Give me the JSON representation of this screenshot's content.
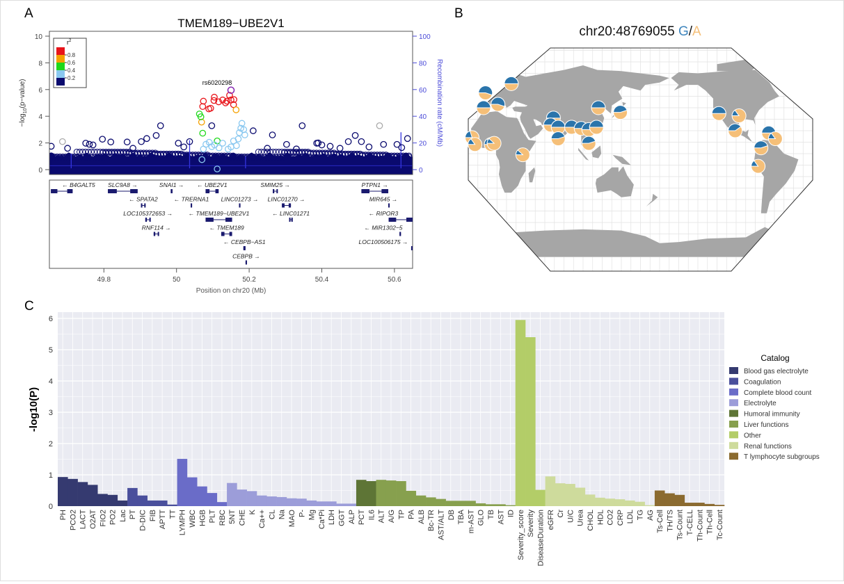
{
  "panel_labels": {
    "a": "A",
    "b": "B",
    "c": "C"
  },
  "chart_data": [
    {
      "type": "scatter",
      "panel": "A",
      "title": "TMEM189−UBE2V1",
      "ylabel_left_prefix": "−log",
      "ylabel_left_sub": "10",
      "ylabel_left_suffix": "(p−value)",
      "ylabel_right": "Recombination rate (cM/Mb)",
      "xlabel": "Position on chr20 (Mb)",
      "xlim": [
        49.65,
        50.65
      ],
      "ylim": [
        0,
        10
      ],
      "ylim_right": [
        0,
        100
      ],
      "xticks": [
        "49.8",
        "50",
        "50.2",
        "50.4",
        "50.6"
      ],
      "yticks": [
        "0",
        "2",
        "4",
        "6",
        "8",
        "10"
      ],
      "yticks_right": [
        "0",
        "20",
        "40",
        "60",
        "80",
        "100"
      ],
      "lead_snp": {
        "label": "rs6020298",
        "pos": 50.15,
        "logp": 5.95
      },
      "legend": {
        "title": "r",
        "title_sup": "2",
        "breaks": [
          "0.8",
          "0.6",
          "0.4",
          "0.2"
        ],
        "colors": [
          "#e8141a",
          "#f5a100",
          "#1ed81a",
          "#8ac8f0",
          "#0a0a6e"
        ]
      },
      "colors": {
        "r2_0.8": "#e8141a",
        "r2_0.6": "#f5a100",
        "r2_0.4": "#1ed81a",
        "r2_0.2": "#8ac8f0",
        "r2_0": "#0a0a6e",
        "na": "#aaaaaa",
        "lead": "#8a2fb5",
        "recomb": "#3434e0"
      },
      "dense_band_max_logp": 1.3,
      "points": [
        [
          50.074,
          5.13,
          "r2_0.8"
        ],
        [
          50.072,
          4.73,
          "r2_0.8"
        ],
        [
          50.089,
          4.55,
          "r2_0.8"
        ],
        [
          50.104,
          5.43,
          "r2_0.8"
        ],
        [
          50.103,
          5.18,
          "r2_0.8"
        ],
        [
          50.116,
          5.08,
          "r2_0.8"
        ],
        [
          50.127,
          5.22,
          "r2_0.8"
        ],
        [
          50.139,
          5.13,
          "r2_0.8"
        ],
        [
          50.15,
          5.22,
          "r2_0.8"
        ],
        [
          50.158,
          5.25,
          "r2_0.8"
        ],
        [
          50.146,
          5.57,
          "r2_0.8"
        ],
        [
          50.157,
          4.87,
          "r2_0.8"
        ],
        [
          50.135,
          5.0,
          "r2_0.8"
        ],
        [
          50.094,
          4.6,
          "r2_0.8"
        ],
        [
          50.164,
          4.48,
          "r2_0.6"
        ],
        [
          50.069,
          3.56,
          "r2_0.6"
        ],
        [
          50.063,
          4.17,
          "r2_0.4"
        ],
        [
          50.067,
          3.96,
          "r2_0.4"
        ],
        [
          50.072,
          2.73,
          "r2_0.4"
        ],
        [
          50.112,
          2.15,
          "r2_0.4"
        ],
        [
          50.07,
          0.75,
          "r2_0.2"
        ],
        [
          50.112,
          0.05,
          "r2_0.2"
        ],
        [
          50.18,
          3.47,
          "r2_0.2"
        ],
        [
          50.177,
          3.1,
          "r2_0.2"
        ],
        [
          50.173,
          2.77,
          "r2_0.2"
        ],
        [
          50.188,
          2.6,
          "r2_0.2"
        ],
        [
          50.081,
          1.9,
          "r2_0.2"
        ],
        [
          50.097,
          1.72,
          "r2_0.2"
        ],
        [
          50.127,
          1.98,
          "r2_0.2"
        ],
        [
          50.157,
          2.15,
          "r2_0.2"
        ],
        [
          50.165,
          1.8,
          "r2_0.2"
        ],
        [
          50.142,
          1.54,
          "r2_0.2"
        ],
        [
          50.074,
          1.54,
          "r2_0.2"
        ],
        [
          50.117,
          1.63,
          "r2_0.2"
        ],
        [
          50.09,
          2.05,
          "r2_0.2"
        ],
        [
          50.105,
          1.85,
          "r2_0.2"
        ],
        [
          50.15,
          1.7,
          "r2_0.2"
        ],
        [
          50.17,
          2.3,
          "r2_0.2"
        ],
        [
          50.185,
          3.0,
          "r2_0.2"
        ],
        [
          49.686,
          2.1,
          "na"
        ],
        [
          50.559,
          3.29,
          "na"
        ],
        [
          49.956,
          3.29,
          "r2_0"
        ],
        [
          49.944,
          2.56,
          "r2_0"
        ],
        [
          49.918,
          2.33,
          "r2_0"
        ],
        [
          49.903,
          2.1,
          "r2_0"
        ],
        [
          49.796,
          2.28,
          "r2_0"
        ],
        [
          49.819,
          2.07,
          "r2_0"
        ],
        [
          49.864,
          2.07,
          "r2_0"
        ],
        [
          50.097,
          3.29,
          "r2_0"
        ],
        [
          50.211,
          2.91,
          "r2_0"
        ],
        [
          50.264,
          2.6,
          "r2_0"
        ],
        [
          50.346,
          3.29,
          "r2_0"
        ],
        [
          50.492,
          2.56,
          "r2_0"
        ],
        [
          50.473,
          2.1,
          "r2_0"
        ],
        [
          50.509,
          2.1,
          "r2_0"
        ],
        [
          50.636,
          2.33,
          "r2_0"
        ],
        [
          49.655,
          1.75,
          "r2_0"
        ],
        [
          50.386,
          1.98,
          "r2_0"
        ],
        [
          49.75,
          1.98,
          "r2_0"
        ],
        [
          50.303,
          1.89,
          "r2_0"
        ],
        [
          50.005,
          1.98,
          "r2_0"
        ],
        [
          50.036,
          2.1,
          "r2_0"
        ],
        [
          50.607,
          1.89,
          "r2_0"
        ],
        [
          50.423,
          1.75,
          "r2_0"
        ],
        [
          50.57,
          1.89,
          "r2_0"
        ],
        [
          49.76,
          1.9,
          "r2_0"
        ],
        [
          49.77,
          1.85,
          "r2_0"
        ],
        [
          50.39,
          2.0,
          "r2_0"
        ],
        [
          50.4,
          1.85,
          "r2_0"
        ],
        [
          50.02,
          1.7,
          "r2_0"
        ],
        [
          49.7,
          1.6,
          "r2_0"
        ],
        [
          49.88,
          1.6,
          "r2_0"
        ],
        [
          50.25,
          1.6,
          "r2_0"
        ],
        [
          50.33,
          1.55,
          "r2_0"
        ],
        [
          50.45,
          1.6,
          "r2_0"
        ],
        [
          50.53,
          1.7,
          "r2_0"
        ],
        [
          50.62,
          1.65,
          "r2_0"
        ]
      ],
      "recombination_peaks": [
        [
          50.036,
          22
        ],
        [
          50.618,
          28
        ],
        [
          49.71,
          12
        ],
        [
          50.19,
          10
        ]
      ],
      "genes": [
        {
          "name": "B4GALT5",
          "start": 49.654,
          "end": 49.714,
          "strand": "-",
          "row": 0
        },
        {
          "name": "SLC9A8",
          "start": 49.811,
          "end": 49.893,
          "strand": "+",
          "row": 0
        },
        {
          "name": "SNAI1",
          "start": 49.984,
          "end": 49.989,
          "strand": "+",
          "row": 0
        },
        {
          "name": "UBE2V1",
          "start": 50.08,
          "end": 50.116,
          "strand": "-",
          "row": 0
        },
        {
          "name": "SMIM25",
          "start": 50.265,
          "end": 50.279,
          "strand": "+",
          "row": 0
        },
        {
          "name": "PTPN1",
          "start": 50.509,
          "end": 50.583,
          "strand": "+",
          "row": 0
        },
        {
          "name": "SPATA2",
          "start": 49.902,
          "end": 49.915,
          "strand": "-",
          "row": 1
        },
        {
          "name": "TRERNA1",
          "start": 50.039,
          "end": 50.041,
          "strand": "-",
          "row": 1
        },
        {
          "name": "LINC01273",
          "start": 50.172,
          "end": 50.176,
          "strand": "+",
          "row": 1
        },
        {
          "name": "LINC01270",
          "start": 50.29,
          "end": 50.315,
          "strand": "+",
          "row": 1
        },
        {
          "name": "MIR645",
          "start": 50.583,
          "end": 50.585,
          "strand": "+",
          "row": 1
        },
        {
          "name": "LOC105372653",
          "start": 49.914,
          "end": 49.929,
          "strand": "+",
          "row": 2
        },
        {
          "name": "TMEM189−UBE2V1",
          "start": 50.08,
          "end": 50.153,
          "strand": "-",
          "row": 2
        },
        {
          "name": "LINC01271",
          "start": 50.31,
          "end": 50.32,
          "strand": "-",
          "row": 2
        },
        {
          "name": "RIPOR3",
          "start": 50.584,
          "end": 50.653,
          "strand": "-",
          "row": 2
        },
        {
          "name": "RNF114",
          "start": 49.937,
          "end": 49.952,
          "strand": "+",
          "row": 3
        },
        {
          "name": "TMEM189",
          "start": 50.123,
          "end": 50.153,
          "strand": "-",
          "row": 3
        },
        {
          "name": "MIR1302−5",
          "start": 50.614,
          "end": 50.616,
          "strand": "-",
          "row": 3
        },
        {
          "name": "CEBPB−AS1",
          "start": 50.184,
          "end": 50.19,
          "strand": "-",
          "row": 4
        },
        {
          "name": "LOC100506175",
          "start": 50.646,
          "end": 50.653,
          "strand": "+",
          "row": 4
        },
        {
          "name": "CEBPB",
          "start": 50.19,
          "end": 50.194,
          "strand": "+",
          "row": 5
        }
      ]
    },
    {
      "type": "pie-map",
      "panel": "B",
      "title_prefix": "chr20:48769055 ",
      "allele_1": "G",
      "allele_sep": "/",
      "allele_2": "A",
      "colors": {
        "G": "#2a74ab",
        "A": "#f5bf78",
        "land": "#a6a6a6",
        "grid": "#e2e2e2"
      },
      "central_meridian": 160,
      "pies": [
        {
          "lon": 25,
          "lat": 61,
          "g": 0.5
        },
        {
          "lon": -2,
          "lat": 53,
          "g": 0.55
        },
        {
          "lon": 11,
          "lat": 43,
          "g": 0.55
        },
        {
          "lon": -4,
          "lat": 40,
          "g": 0.5
        },
        {
          "lon": -16,
          "lat": 14,
          "g": 0.2
        },
        {
          "lon": -13,
          "lat": 8,
          "g": 0.15
        },
        {
          "lon": 4,
          "lat": 8,
          "g": 0.15
        },
        {
          "lon": 7,
          "lat": 9,
          "g": 0.12
        },
        {
          "lon": 37,
          "lat": -1,
          "g": 0.12
        },
        {
          "lon": 69,
          "lat": 31,
          "g": 0.5
        },
        {
          "lon": 66,
          "lat": 25,
          "g": 0.5
        },
        {
          "lon": 74,
          "lat": 23,
          "g": 0.5
        },
        {
          "lon": 88,
          "lat": 23,
          "g": 0.5
        },
        {
          "lon": 74,
          "lat": 13,
          "g": 0.45
        },
        {
          "lon": 98,
          "lat": 22,
          "g": 0.5
        },
        {
          "lon": 106,
          "lat": 21,
          "g": 0.5
        },
        {
          "lon": 114,
          "lat": 23,
          "g": 0.5
        },
        {
          "lon": 106,
          "lat": 9,
          "g": 0.45
        },
        {
          "lon": 116,
          "lat": 40,
          "g": 0.5
        },
        {
          "lon": 139,
          "lat": 36,
          "g": 0.45
        },
        {
          "lon": -118,
          "lat": 35,
          "g": 0.5
        },
        {
          "lon": -97,
          "lat": 33,
          "g": 0.15
        },
        {
          "lon": -101,
          "lat": 20,
          "g": 0.4
        },
        {
          "lon": -66,
          "lat": 18,
          "g": 0.5
        },
        {
          "lon": -59,
          "lat": 13,
          "g": 0.15
        },
        {
          "lon": -74,
          "lat": 5,
          "g": 0.45
        },
        {
          "lon": -77,
          "lat": -11,
          "g": 0.15
        }
      ]
    },
    {
      "type": "bar",
      "panel": "C",
      "ylabel": "-log10(P)",
      "xlabel": "",
      "ylim": [
        0,
        6.2
      ],
      "yticks": [
        "0",
        "1",
        "2",
        "3",
        "4",
        "5",
        "6"
      ],
      "grid": true,
      "legend": {
        "title": "Catalog",
        "placement": "right"
      },
      "groups": [
        {
          "name": "Blood gas electrolyte",
          "color": "#353a70"
        },
        {
          "name": "Coagulation",
          "color": "#4a4f9c"
        },
        {
          "name": "Complete blood count",
          "color": "#6a6cc8"
        },
        {
          "name": "Electrolyte",
          "color": "#9c9dd9"
        },
        {
          "name": "Humoral immunity",
          "color": "#5e7536"
        },
        {
          "name": "Liver functions",
          "color": "#87a04e"
        },
        {
          "name": "Other",
          "color": "#b3cd68"
        },
        {
          "name": "Renal functions",
          "color": "#cedb9c"
        },
        {
          "name": "T lymphocyte subgroups",
          "color": "#8b6b30"
        }
      ],
      "bars": [
        [
          "PH",
          0.93,
          0
        ],
        [
          "PCO2",
          0.87,
          0
        ],
        [
          "LACT",
          0.77,
          0
        ],
        [
          "O2AT",
          0.68,
          0
        ],
        [
          "FIO2",
          0.39,
          0
        ],
        [
          "PO2",
          0.36,
          0
        ],
        [
          "Lac",
          0.18,
          0
        ],
        [
          "PT",
          0.58,
          1
        ],
        [
          "D-DIC",
          0.34,
          1
        ],
        [
          "FIB",
          0.18,
          1
        ],
        [
          "APTT",
          0.18,
          1
        ],
        [
          "TT",
          0.05,
          1
        ],
        [
          "LYMPH",
          1.51,
          2
        ],
        [
          "WBC",
          0.92,
          2
        ],
        [
          "HGB",
          0.63,
          2
        ],
        [
          "PLT",
          0.42,
          2
        ],
        [
          "RBC",
          0.13,
          2
        ],
        [
          "5NT",
          0.74,
          3
        ],
        [
          "CHE",
          0.53,
          3
        ],
        [
          "K",
          0.48,
          3
        ],
        [
          "Ca++",
          0.34,
          3
        ],
        [
          "CL",
          0.31,
          3
        ],
        [
          "Na",
          0.29,
          3
        ],
        [
          "MAO",
          0.25,
          3
        ],
        [
          "P-",
          0.24,
          3
        ],
        [
          "Mg",
          0.18,
          3
        ],
        [
          "Ca*Pi",
          0.15,
          3
        ],
        [
          "LDH",
          0.15,
          3
        ],
        [
          "GGT",
          0.08,
          3
        ],
        [
          "ALP",
          0.08,
          3
        ],
        [
          "PCT",
          0.84,
          4
        ],
        [
          "IL6",
          0.8,
          4
        ],
        [
          "ALT",
          0.84,
          5
        ],
        [
          "A/G",
          0.82,
          5
        ],
        [
          "TP",
          0.8,
          5
        ],
        [
          "PA",
          0.49,
          5
        ],
        [
          "ALB",
          0.34,
          5
        ],
        [
          "Bc-TR",
          0.28,
          5
        ],
        [
          "AST/ALT",
          0.23,
          5
        ],
        [
          "DB",
          0.17,
          5
        ],
        [
          "TBA",
          0.17,
          5
        ],
        [
          "m-AST",
          0.17,
          5
        ],
        [
          "GLO",
          0.09,
          5
        ],
        [
          "TB",
          0.06,
          5
        ],
        [
          "AST",
          0.06,
          5
        ],
        [
          "ID",
          0.03,
          5
        ],
        [
          "Severity_score",
          5.95,
          6
        ],
        [
          "Severity",
          5.4,
          6
        ],
        [
          "DiseaseDuration",
          0.52,
          6
        ],
        [
          "eGFR",
          0.95,
          7
        ],
        [
          "Cr",
          0.73,
          7
        ],
        [
          "U/C",
          0.71,
          7
        ],
        [
          "Urea",
          0.59,
          7
        ],
        [
          "CHOL",
          0.37,
          7
        ],
        [
          "HDL",
          0.27,
          7
        ],
        [
          "CO2",
          0.24,
          7
        ],
        [
          "CRP",
          0.22,
          7
        ],
        [
          "LDL",
          0.18,
          7
        ],
        [
          "TG",
          0.14,
          7
        ],
        [
          "AG",
          0.03,
          7
        ],
        [
          "Ts-Cell",
          0.5,
          8
        ],
        [
          "TH/TS",
          0.41,
          8
        ],
        [
          "Ts-Count",
          0.36,
          8
        ],
        [
          "T-CELL",
          0.11,
          8
        ],
        [
          "Th-Count",
          0.11,
          8
        ],
        [
          "Th-Cell",
          0.07,
          8
        ],
        [
          "Tc-Count",
          0.04,
          8
        ]
      ]
    }
  ]
}
